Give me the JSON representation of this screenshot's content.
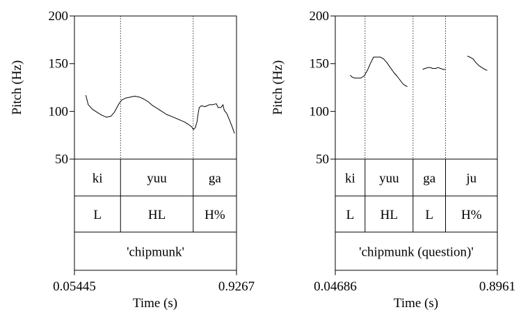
{
  "chart_data": [
    {
      "type": "line",
      "xlabel": "Time (s)",
      "ylabel": "Pitch (Hz)",
      "xlim": [
        0.05445,
        0.9267
      ],
      "ylim": [
        50,
        200
      ],
      "x_tick_labels": [
        "0.05445",
        "0.9267"
      ],
      "y_ticks": [
        50,
        100,
        150,
        200
      ],
      "y_tick_labels": [
        "50",
        "100",
        "150",
        "200"
      ],
      "boundaries": [
        0.3025,
        0.6937
      ],
      "tiers": [
        [
          "ki",
          "yuu",
          "ga"
        ],
        [
          "L",
          "HL",
          "H%"
        ],
        [
          "'chipmunk'"
        ]
      ],
      "series": [
        {
          "points": [
            [
              0.116,
              117
            ],
            [
              0.129,
              107
            ],
            [
              0.153,
              102
            ],
            [
              0.177,
              99
            ],
            [
              0.202,
              96
            ],
            [
              0.226,
              94
            ],
            [
              0.251,
              95
            ],
            [
              0.269,
              99
            ],
            [
              0.294,
              108
            ],
            [
              0.309,
              112
            ],
            [
              0.331,
              114
            ],
            [
              0.355,
              115
            ],
            [
              0.379,
              116
            ],
            [
              0.404,
              115
            ],
            [
              0.428,
              113
            ],
            [
              0.452,
              110
            ],
            [
              0.476,
              106
            ],
            [
              0.501,
              103
            ],
            [
              0.525,
              100
            ],
            [
              0.549,
              97
            ],
            [
              0.574,
              95
            ],
            [
              0.598,
              93
            ],
            [
              0.622,
              91
            ],
            [
              0.646,
              89
            ],
            [
              0.671,
              86
            ],
            [
              0.685,
              84
            ],
            [
              0.695,
              81
            ],
            [
              0.705,
              83
            ],
            [
              0.714,
              89
            ],
            [
              0.719,
              96
            ],
            [
              0.726,
              104
            ],
            [
              0.738,
              106
            ],
            [
              0.757,
              105
            ],
            [
              0.781,
              107
            ],
            [
              0.799,
              107
            ],
            [
              0.818,
              108
            ],
            [
              0.828,
              104
            ],
            [
              0.843,
              104
            ],
            [
              0.854,
              107
            ],
            [
              0.861,
              101
            ],
            [
              0.874,
              98
            ],
            [
              0.891,
              90
            ],
            [
              0.903,
              84
            ],
            [
              0.916,
              77
            ]
          ]
        }
      ]
    },
    {
      "type": "line",
      "xlabel": "Time (s)",
      "ylabel": "Pitch (Hz)",
      "xlim": [
        0.04686,
        0.8961
      ],
      "ylim": [
        50,
        200
      ],
      "x_tick_labels": [
        "0.04686",
        "0.8961"
      ],
      "y_ticks": [
        50,
        100,
        150,
        200
      ],
      "y_tick_labels": [
        "50",
        "100",
        "150",
        "200"
      ],
      "boundaries": [
        0.2029,
        0.4544,
        0.6246
      ],
      "tiers": [
        [
          "ki",
          "yuu",
          "ga",
          "ju"
        ],
        [
          "L",
          "HL",
          "L",
          "H%"
        ],
        [
          "'chipmunk (question)'"
        ]
      ],
      "series": [
        {
          "points": [
            [
              0.1254,
              138
            ],
            [
              0.1342,
              136
            ],
            [
              0.1473,
              135
            ],
            [
              0.1626,
              135
            ],
            [
              0.1801,
              135
            ],
            [
              0.1976,
              137
            ],
            [
              0.2151,
              143
            ],
            [
              0.2303,
              150
            ],
            [
              0.2478,
              157
            ],
            [
              0.2653,
              157
            ],
            [
              0.2828,
              157
            ],
            [
              0.3002,
              155
            ],
            [
              0.3177,
              151
            ],
            [
              0.3352,
              146
            ],
            [
              0.3527,
              141
            ],
            [
              0.3702,
              137
            ],
            [
              0.3855,
              133
            ],
            [
              0.4008,
              129
            ],
            [
              0.4139,
              127
            ],
            [
              0.4249,
              126
            ]
          ]
        },
        {
          "points": [
            [
              0.5047,
              144
            ],
            [
              0.5178,
              145
            ],
            [
              0.5331,
              146
            ],
            [
              0.5462,
              146
            ],
            [
              0.5571,
              145
            ],
            [
              0.5724,
              145
            ],
            [
              0.5855,
              146
            ],
            [
              0.5986,
              145
            ],
            [
              0.6117,
              144
            ],
            [
              0.6246,
              144
            ]
          ]
        },
        {
          "points": [
            [
              0.7384,
              158
            ],
            [
              0.7515,
              157
            ],
            [
              0.769,
              155
            ],
            [
              0.7843,
              151
            ],
            [
              0.7996,
              148
            ],
            [
              0.8149,
              146
            ],
            [
              0.8302,
              144
            ],
            [
              0.8433,
              143
            ]
          ]
        }
      ]
    }
  ]
}
